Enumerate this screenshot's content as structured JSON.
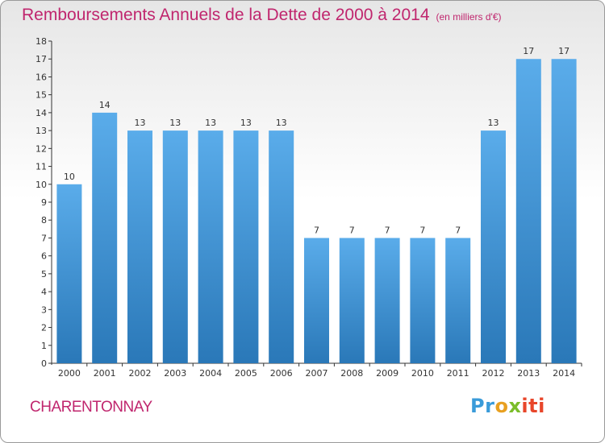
{
  "header": {
    "title": "Remboursements Annuels de la Dette de 2000 à 2014",
    "unit": "(en milliers d'€)"
  },
  "footer": {
    "commune": "CHARENTONNAY",
    "logo_text": "Proxiti"
  },
  "colors": {
    "accent": "#c0266e",
    "bar_top": "#5aacea",
    "bar_bottom": "#2a78b8"
  },
  "chart_data": {
    "type": "bar",
    "title": "Remboursements Annuels de la Dette de 2000 à 2014",
    "subtitle": "(en milliers d'€)",
    "xlabel": "",
    "ylabel": "",
    "categories": [
      "2000",
      "2001",
      "2002",
      "2003",
      "2004",
      "2005",
      "2006",
      "2007",
      "2008",
      "2009",
      "2010",
      "2011",
      "2012",
      "2013",
      "2014"
    ],
    "values": [
      10,
      14,
      13,
      13,
      13,
      13,
      13,
      7,
      7,
      7,
      7,
      7,
      13,
      17,
      17
    ],
    "ylim": [
      0,
      18
    ],
    "yticks": [
      0,
      1,
      2,
      3,
      4,
      5,
      6,
      7,
      8,
      9,
      10,
      11,
      12,
      13,
      14,
      15,
      16,
      17,
      18
    ],
    "data_labels": true,
    "grid": false,
    "legend": "none"
  }
}
